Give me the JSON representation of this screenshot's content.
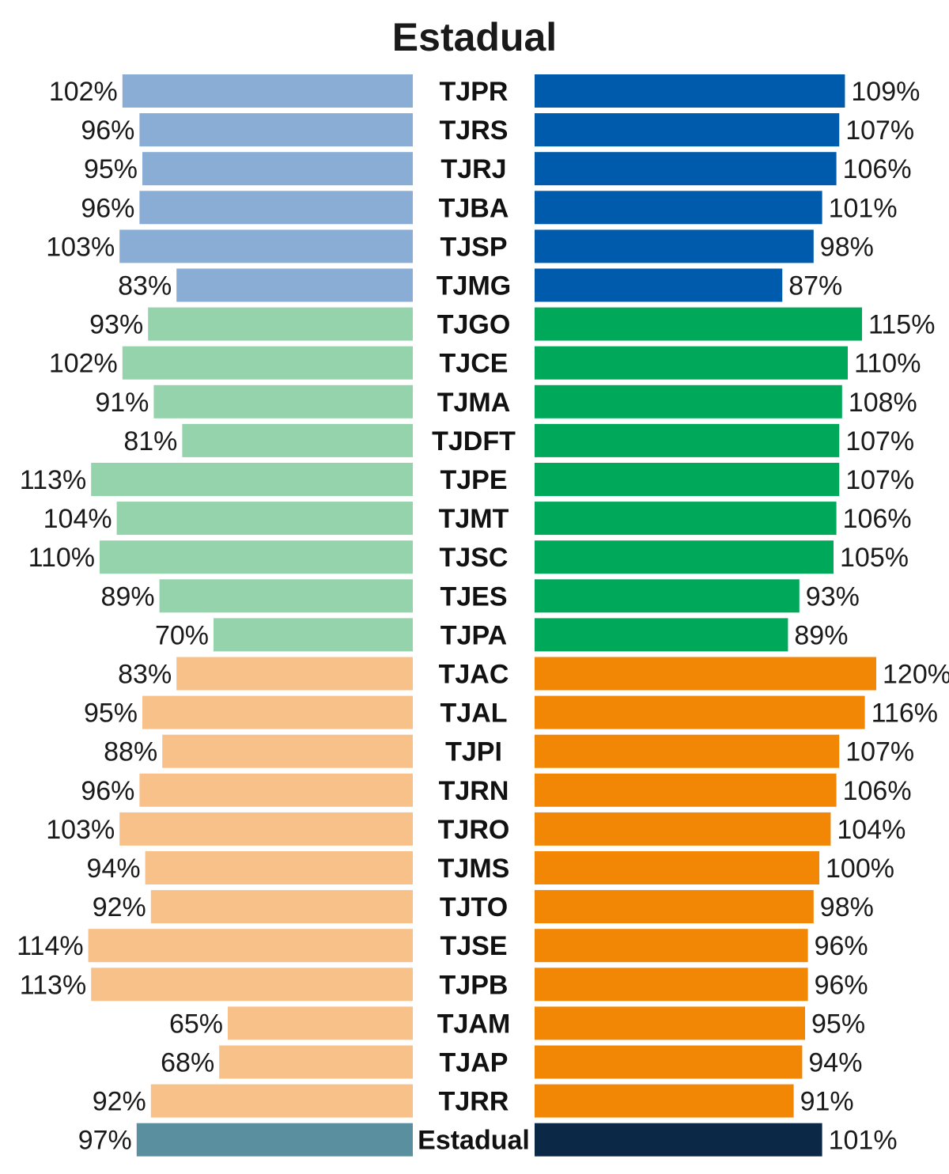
{
  "chart_data": {
    "type": "bar",
    "title": "Estadual",
    "orientation": "horizontal-butterfly",
    "xlabel": "",
    "ylabel": "",
    "xlim": [
      0,
      120
    ],
    "grid": false,
    "legend": "none",
    "groups": [
      {
        "name": "group-1",
        "left_color": "#8aadd6",
        "right_color": "#005bac",
        "categories": [
          "TJPR",
          "TJRS",
          "TJRJ",
          "TJBA",
          "TJSP",
          "TJMG"
        ]
      },
      {
        "name": "group-2",
        "left_color": "#95d3ac",
        "right_color": "#00a95a",
        "categories": [
          "TJGO",
          "TJCE",
          "TJMA",
          "TJDFT",
          "TJPE",
          "TJMT",
          "TJSC",
          "TJES",
          "TJPA"
        ]
      },
      {
        "name": "group-3",
        "left_color": "#f9c18a",
        "right_color": "#f28705",
        "categories": [
          "TJAC",
          "TJAL",
          "TJPI",
          "TJRN",
          "TJRO",
          "TJMS",
          "TJTO",
          "TJSE",
          "TJPB",
          "TJAM",
          "TJAP",
          "TJRR"
        ]
      },
      {
        "name": "total",
        "left_color": "#5a8fa0",
        "right_color": "#0b2847",
        "categories": [
          "Estadual"
        ]
      }
    ],
    "categories": [
      "TJPR",
      "TJRS",
      "TJRJ",
      "TJBA",
      "TJSP",
      "TJMG",
      "TJGO",
      "TJCE",
      "TJMA",
      "TJDFT",
      "TJPE",
      "TJMT",
      "TJSC",
      "TJES",
      "TJPA",
      "TJAC",
      "TJAL",
      "TJPI",
      "TJRN",
      "TJRO",
      "TJMS",
      "TJTO",
      "TJSE",
      "TJPB",
      "TJAM",
      "TJAP",
      "TJRR",
      "Estadual"
    ],
    "series": [
      {
        "name": "left",
        "values": [
          102,
          96,
          95,
          96,
          103,
          83,
          93,
          102,
          91,
          81,
          113,
          104,
          110,
          89,
          70,
          83,
          95,
          88,
          96,
          103,
          94,
          92,
          114,
          113,
          65,
          68,
          92,
          97
        ],
        "labels": [
          "102%",
          "96%",
          "95%",
          "96%",
          "103%",
          "83%",
          "93%",
          "102%",
          "91%",
          "81%",
          "113%",
          "104%",
          "110%",
          "89%",
          "70%",
          "83%",
          "95%",
          "88%",
          "96%",
          "103%",
          "94%",
          "92%",
          "114%",
          "113%",
          "65%",
          "68%",
          "92%",
          "97%"
        ]
      },
      {
        "name": "right",
        "values": [
          109,
          107,
          106,
          101,
          98,
          87,
          115,
          110,
          108,
          107,
          107,
          106,
          105,
          93,
          89,
          120,
          116,
          107,
          106,
          104,
          100,
          98,
          96,
          96,
          95,
          94,
          91,
          101
        ],
        "labels": [
          "109%",
          "107%",
          "106%",
          "101%",
          "98%",
          "87%",
          "115%",
          "110%",
          "108%",
          "107%",
          "107%",
          "106%",
          "105%",
          "93%",
          "89%",
          "120%",
          "116%",
          "107%",
          "106%",
          "104%",
          "100%",
          "98%",
          "96%",
          "96%",
          "95%",
          "94%",
          "91%",
          "101%"
        ]
      }
    ]
  }
}
